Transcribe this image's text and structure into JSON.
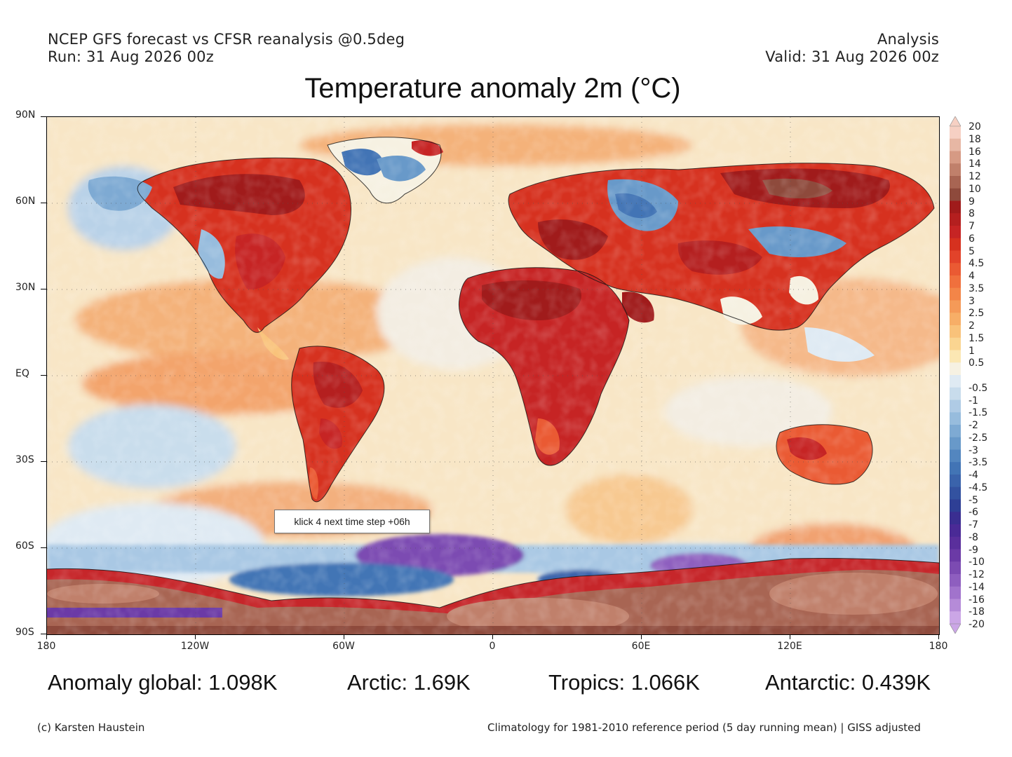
{
  "header": {
    "line1_left": "NCEP GFS forecast vs CFSR reanalysis @0.5deg",
    "line2_left": "Run: 31 Aug 2026 00z",
    "line1_right": "Analysis",
    "line2_right": "Valid: 31 Aug 2026 00z"
  },
  "title": "Temperature anomaly 2m (°C)",
  "map": {
    "projection": "equirectangular",
    "lat_labels": [
      "90N",
      "60N",
      "30N",
      "EQ",
      "30S",
      "60S",
      "90S"
    ],
    "lon_labels": [
      "180",
      "120W",
      "60W",
      "0",
      "60E",
      "120E",
      "180"
    ],
    "grid": "dotted"
  },
  "colorbar": {
    "labels": [
      "20",
      "18",
      "16",
      "14",
      "12",
      "10",
      "9",
      "8",
      "7",
      "6",
      "5",
      "4.5",
      "4",
      "3.5",
      "3",
      "2.5",
      "2",
      "1.5",
      "1",
      "0.5",
      "-0.5",
      "-1",
      "-1.5",
      "-2",
      "-2.5",
      "-3",
      "-3.5",
      "-4",
      "-4.5",
      "-5",
      "-6",
      "-7",
      "-8",
      "-9",
      "-10",
      "-12",
      "-14",
      "-16",
      "-18",
      "-20"
    ],
    "colors": [
      "#f6d0c3",
      "#e7b7a4",
      "#d69a84",
      "#c0806b",
      "#a86553",
      "#8e4a3c",
      "#a01b1b",
      "#b41f1f",
      "#c62424",
      "#d6311f",
      "#e2432a",
      "#ea5a33",
      "#f0703d",
      "#f38548",
      "#f59a58",
      "#f7ae67",
      "#f9c27a",
      "#fad591",
      "#fbe7b3",
      "#f6f1e2",
      "#dfeaf3",
      "#c8dcec",
      "#afcbe5",
      "#97bcdd",
      "#7eaad3",
      "#6899c9",
      "#5386bf",
      "#4274b5",
      "#3a63ab",
      "#3352a0",
      "#2e3f95",
      "#3a2e91",
      "#4a2a96",
      "#5a2f9c",
      "#6b3aa6",
      "#7c4bb2",
      "#8e5ebf",
      "#a173cc",
      "#b58bd8",
      "#cba6e6"
    ]
  },
  "tooltip": "klick 4 next time step +06h",
  "stats": {
    "global": "Anomaly global: 1.098K",
    "arctic": "Arctic: 1.69K",
    "tropics": "Tropics: 1.066K",
    "antarctic": "Antarctic: 0.439K"
  },
  "footer": {
    "left": "(c) Karsten Haustein",
    "right": "Climatology for 1981-2010 reference period (5 day running mean) | GISS adjusted"
  }
}
